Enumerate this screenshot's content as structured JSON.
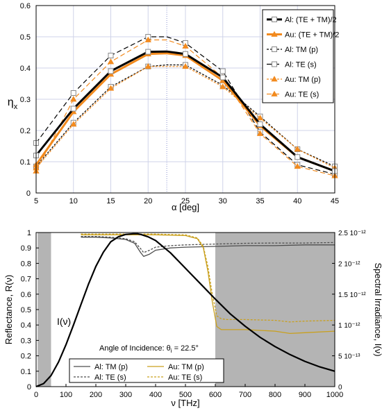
{
  "colors": {
    "al": "#000000",
    "al_spectral": "#4d4d4d",
    "au_orange": "#f28a1e",
    "au_gold": "#c9a01e",
    "band": "#b4b4b4",
    "grid": "#cfd3e8"
  },
  "chart_data": [
    {
      "type": "line",
      "title": "",
      "xlabel": "α [deg]",
      "ylabel": "η",
      "ylabel_sub": "x",
      "xlim": [
        5,
        45
      ],
      "ylim": [
        0,
        0.6
      ],
      "xticks": [
        "5",
        "10",
        "15",
        "20",
        "25",
        "30",
        "35",
        "40",
        "45"
      ],
      "yticks": [
        "0",
        "0.1",
        "0.2",
        "0.3",
        "0.4",
        "0.5",
        "0.6"
      ],
      "grid": true,
      "legend_position": "top-right",
      "x": [
        5,
        10,
        15,
        20,
        22.5,
        25,
        30,
        35,
        40,
        45
      ],
      "series": [
        {
          "name": "Al: (TE + TM)/2",
          "values": [
            0.12,
            0.27,
            0.39,
            0.452,
            0.453,
            0.445,
            0.37,
            0.22,
            0.115,
            0.07
          ]
        },
        {
          "name": "Au: (TE + TM)/2",
          "values": [
            0.09,
            0.26,
            0.38,
            0.445,
            0.447,
            0.44,
            0.36,
            0.215,
            0.115,
            0.07
          ]
        },
        {
          "name": "Al: TM (p)",
          "values": [
            0.085,
            0.225,
            0.34,
            0.405,
            0.41,
            0.41,
            0.345,
            0.245,
            0.14,
            0.085
          ]
        },
        {
          "name": "Al: TE (s)",
          "values": [
            0.16,
            0.32,
            0.44,
            0.5,
            0.5,
            0.48,
            0.39,
            0.195,
            0.09,
            0.06
          ]
        },
        {
          "name": "Au: TM (p)",
          "values": [
            0.08,
            0.22,
            0.335,
            0.405,
            0.405,
            0.405,
            0.34,
            0.24,
            0.14,
            0.08
          ]
        },
        {
          "name": "Au: TE (s)",
          "values": [
            0.07,
            0.3,
            0.42,
            0.49,
            0.49,
            0.47,
            0.37,
            0.19,
            0.085,
            0.055
          ]
        }
      ]
    },
    {
      "type": "line",
      "title": "",
      "xlabel": "ν [THz]",
      "ylabel": "Reflectance, R(ν)",
      "y2label": "Spectral Irradiance, I(ν)",
      "xlim": [
        0,
        1000
      ],
      "ylim": [
        0,
        1
      ],
      "y2lim": [
        0,
        2.5e-12
      ],
      "xticks": [
        "0",
        "100",
        "200",
        "300",
        "400",
        "500",
        "600",
        "700",
        "800",
        "900",
        "1000"
      ],
      "yticks": [
        "0",
        "0.1",
        "0.2",
        "0.3",
        "0.4",
        "0.5",
        "0.6",
        "0.7",
        "0.8",
        "0.9",
        "1"
      ],
      "y2ticks": [
        "0",
        "5 10⁻¹³",
        "1 10⁻¹²",
        "1.5 10⁻¹²",
        "2 10⁻¹²",
        "2.5 10⁻¹²"
      ],
      "grid": false,
      "legend_position": "bottom-left",
      "shaded_regions_thz": [
        [
          5,
          50
        ],
        [
          600,
          1000
        ]
      ],
      "annotations": [
        {
          "text": "I(ν)",
          "x": 70,
          "y": 0.42
        },
        {
          "text": "Angle of Incidence: θ",
          "sub": "i",
          "suffix": " = 22.5°",
          "x": 215,
          "y": 0.16
        }
      ],
      "series": [
        {
          "name": "Al: TM (p)",
          "x": [
            150,
            200,
            250,
            300,
            330,
            350,
            360,
            380,
            400,
            450,
            500,
            600,
            700,
            800,
            900,
            1000
          ],
          "values": [
            0.97,
            0.97,
            0.965,
            0.955,
            0.93,
            0.87,
            0.845,
            0.86,
            0.885,
            0.9,
            0.905,
            0.91,
            0.915,
            0.915,
            0.92,
            0.92
          ]
        },
        {
          "name": "Al: TE (s)",
          "x": [
            150,
            200,
            250,
            300,
            330,
            350,
            360,
            380,
            400,
            450,
            500,
            600,
            700,
            800,
            900,
            1000
          ],
          "values": [
            0.975,
            0.975,
            0.97,
            0.96,
            0.94,
            0.895,
            0.87,
            0.885,
            0.905,
            0.915,
            0.92,
            0.925,
            0.93,
            0.932,
            0.932,
            0.935
          ]
        },
        {
          "name": "Au: TM (p)",
          "x": [
            150,
            400,
            500,
            540,
            560,
            575,
            590,
            605,
            620,
            640,
            700,
            800,
            850,
            900,
            1000
          ],
          "values": [
            0.985,
            0.985,
            0.98,
            0.96,
            0.9,
            0.75,
            0.55,
            0.39,
            0.37,
            0.37,
            0.37,
            0.36,
            0.345,
            0.35,
            0.36
          ]
        },
        {
          "name": "Au: TE (s)",
          "x": [
            150,
            400,
            500,
            540,
            560,
            575,
            590,
            605,
            620,
            640,
            700,
            800,
            850,
            900,
            1000
          ],
          "values": [
            0.99,
            0.99,
            0.985,
            0.965,
            0.91,
            0.78,
            0.6,
            0.46,
            0.44,
            0.435,
            0.435,
            0.43,
            0.42,
            0.425,
            0.43
          ]
        },
        {
          "name": "I(ν)",
          "axis": "y2",
          "x": [
            0,
            25,
            50,
            75,
            100,
            125,
            150,
            175,
            200,
            225,
            250,
            275,
            300,
            325,
            340,
            350,
            375,
            400,
            450,
            500,
            550,
            600,
            650,
            700,
            750,
            800,
            850,
            900,
            950,
            1000
          ],
          "values": [
            0,
            5e-14,
            1.8e-13,
            4e-13,
            6.8e-13,
            1e-12,
            1.33e-12,
            1.66e-12,
            1.95e-12,
            2.18e-12,
            2.35e-12,
            2.43e-12,
            2.47e-12,
            2.48e-12,
            2.48e-12,
            2.47e-12,
            2.43e-12,
            2.37e-12,
            2.17e-12,
            1.92e-12,
            1.67e-12,
            1.42e-12,
            1.18e-12,
            9.8e-13,
            8e-13,
            6.5e-13,
            5.2e-13,
            4.1e-13,
            3.2e-13,
            2.5e-13
          ]
        }
      ]
    }
  ]
}
